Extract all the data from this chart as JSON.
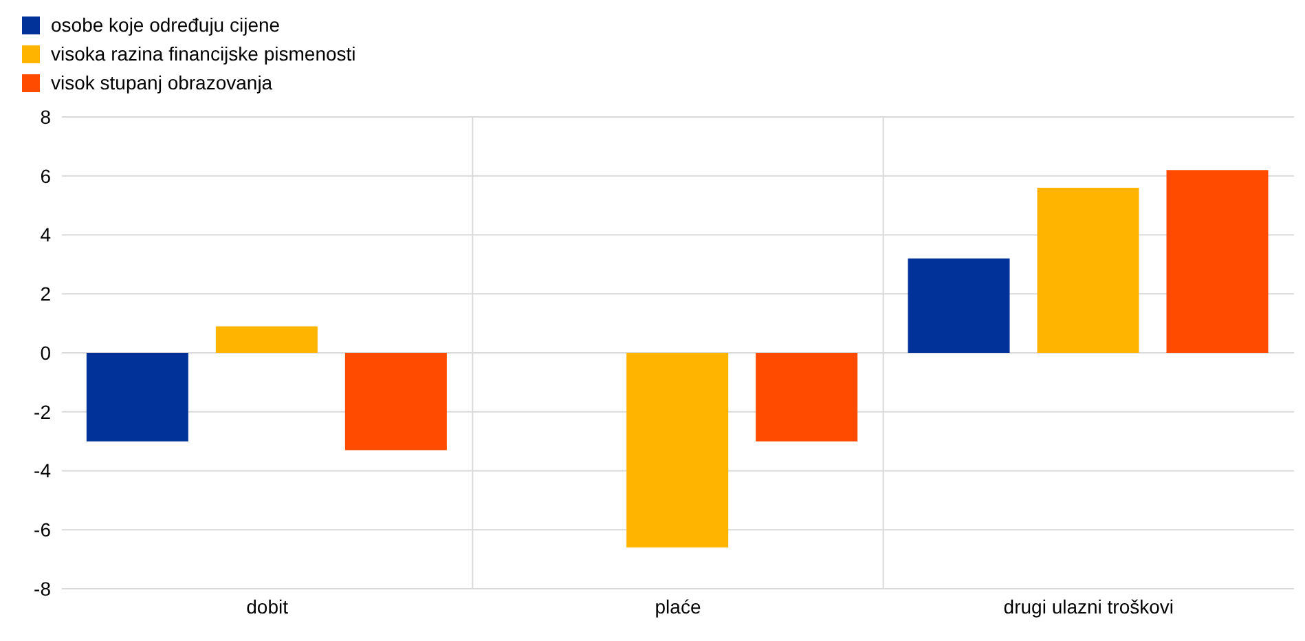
{
  "chart_data": {
    "type": "bar",
    "categories": [
      "dobit",
      "plaće",
      "drugi ulazni troškovi"
    ],
    "series": [
      {
        "name": "osobe koje određuju cijene",
        "color": "#003299",
        "values": [
          -3.0,
          null,
          3.2
        ]
      },
      {
        "name": "visoka razina financijske pismenosti",
        "color": "#ffb400",
        "values": [
          0.9,
          -6.6,
          5.6
        ]
      },
      {
        "name": "visok stupanj obrazovanja",
        "color": "#ff4b00",
        "values": [
          -3.3,
          -3.0,
          6.2
        ]
      }
    ],
    "ylim": [
      -8,
      8
    ],
    "yticks": [
      -8,
      -6,
      -4,
      -2,
      0,
      2,
      4,
      6,
      8
    ],
    "grid": true,
    "legend": "top left"
  }
}
